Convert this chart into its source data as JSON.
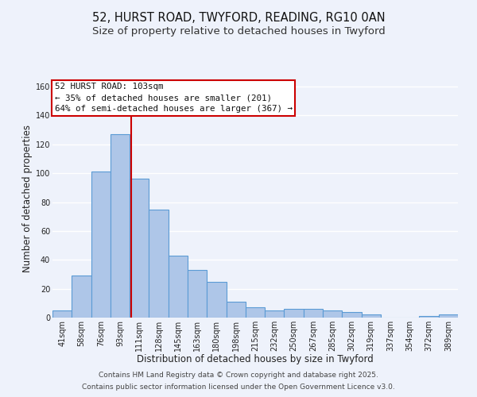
{
  "title_line1": "52, HURST ROAD, TWYFORD, READING, RG10 0AN",
  "title_line2": "Size of property relative to detached houses in Twyford",
  "xlabel": "Distribution of detached houses by size in Twyford",
  "ylabel": "Number of detached properties",
  "bar_labels": [
    "41sqm",
    "58sqm",
    "76sqm",
    "93sqm",
    "111sqm",
    "128sqm",
    "145sqm",
    "163sqm",
    "180sqm",
    "198sqm",
    "215sqm",
    "232sqm",
    "250sqm",
    "267sqm",
    "285sqm",
    "302sqm",
    "319sqm",
    "337sqm",
    "354sqm",
    "372sqm",
    "389sqm"
  ],
  "bar_values": [
    5,
    29,
    101,
    127,
    96,
    75,
    43,
    33,
    25,
    11,
    7,
    5,
    6,
    6,
    5,
    4,
    2,
    0,
    0,
    1,
    2
  ],
  "bar_color": "#aec6e8",
  "bar_edge_color": "#5b9bd5",
  "highlight_line_color": "#cc0000",
  "red_line_x": 3.56,
  "ylim": [
    0,
    165
  ],
  "yticks": [
    0,
    20,
    40,
    60,
    80,
    100,
    120,
    140,
    160
  ],
  "annotation_title": "52 HURST ROAD: 103sqm",
  "annotation_line1": "← 35% of detached houses are smaller (201)",
  "annotation_line2": "64% of semi-detached houses are larger (367) →",
  "annotation_box_color": "#ffffff",
  "annotation_border_color": "#cc0000",
  "footer_line1": "Contains HM Land Registry data © Crown copyright and database right 2025.",
  "footer_line2": "Contains public sector information licensed under the Open Government Licence v3.0.",
  "background_color": "#eef2fb",
  "grid_color": "#ffffff",
  "title_fontsize": 10.5,
  "subtitle_fontsize": 9.5,
  "axis_label_fontsize": 8.5,
  "tick_fontsize": 7,
  "annotation_fontsize": 7.8,
  "footer_fontsize": 6.5
}
